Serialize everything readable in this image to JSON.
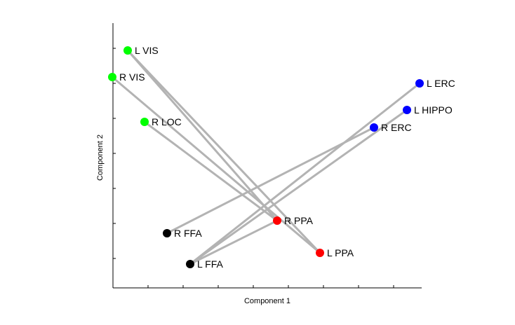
{
  "chart_data": {
    "type": "scatter",
    "title": "",
    "xlabel": "Component 1",
    "ylabel": "Component 2",
    "xlim": [
      0,
      440
    ],
    "ylim": [
      0,
      375
    ],
    "x_ticks": [
      0,
      50,
      100,
      150,
      200,
      250,
      300,
      350,
      400
    ],
    "y_ticks": [
      42,
      92,
      142,
      192,
      242,
      292,
      342
    ],
    "grid": false,
    "legend": "none",
    "points": [
      {
        "label": "L VIS",
        "x": 21,
        "y": 339,
        "color": "#00ff00"
      },
      {
        "label": "R VIS",
        "x": -1,
        "y": 301,
        "color": "#00ff00"
      },
      {
        "label": "R LOC",
        "x": 45,
        "y": 237,
        "color": "#00ff00"
      },
      {
        "label": "L ERC",
        "x": 437,
        "y": 292,
        "color": "#0000ff"
      },
      {
        "label": "L HIPPO",
        "x": 419,
        "y": 254,
        "color": "#0000ff"
      },
      {
        "label": "R ERC",
        "x": 372,
        "y": 229,
        "color": "#0000ff"
      },
      {
        "label": "R PPA",
        "x": 234,
        "y": 96,
        "color": "#ff0000"
      },
      {
        "label": "L PPA",
        "x": 295,
        "y": 50,
        "color": "#ff0000"
      },
      {
        "label": "R FFA",
        "x": 77,
        "y": 78,
        "color": "#000000"
      },
      {
        "label": "L FFA",
        "x": 110,
        "y": 34,
        "color": "#000000"
      }
    ],
    "connections": [
      [
        "L VIS",
        "L PPA"
      ],
      [
        "R VIS",
        "L PPA"
      ],
      [
        "L VIS",
        "R PPA"
      ],
      [
        "R LOC",
        "R PPA"
      ],
      [
        "R FFA",
        "R ERC"
      ],
      [
        "L FFA",
        "L ERC"
      ],
      [
        "L FFA",
        "L HIPPO"
      ],
      [
        "L FFA",
        "R PPA"
      ]
    ],
    "connection_color": "#b3b3b3"
  }
}
